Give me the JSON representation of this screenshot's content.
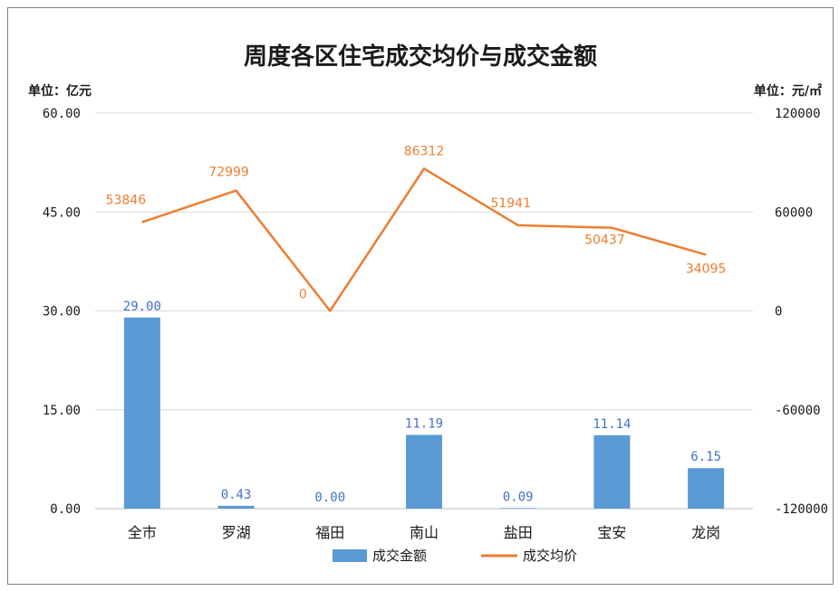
{
  "chart_data": {
    "type": "bar",
    "title": "周度各区住宅成交均价与成交金额",
    "ylabel_left": "单位：亿元",
    "ylabel_right": "单位：元/㎡",
    "categories": [
      "全市",
      "罗湖",
      "福田",
      "南山",
      "盐田",
      "宝安",
      "龙岗"
    ],
    "series": [
      {
        "name": "成交金额",
        "type": "bar",
        "axis": "left",
        "values": [
          29.0,
          0.43,
          0.0,
          11.19,
          0.09,
          11.14,
          6.15
        ],
        "labels": [
          "29.00",
          "0.43",
          "0.00",
          "11.19",
          "0.09",
          "11.14",
          "6.15"
        ]
      },
      {
        "name": "成交均价",
        "type": "line",
        "axis": "right",
        "values": [
          53846,
          72999,
          0,
          86312,
          51941,
          50437,
          34095
        ],
        "labels": [
          "53846",
          "72999",
          "0",
          "86312",
          "51941",
          "50437",
          "34095"
        ]
      }
    ],
    "ylim_left": [
      0,
      60
    ],
    "yticks_left": [
      "0.00",
      "15.00",
      "30.00",
      "45.00",
      "60.00"
    ],
    "ylim_right": [
      -120000,
      120000
    ],
    "yticks_right": [
      "-120000",
      "-60000",
      "0",
      "60000",
      "120000"
    ],
    "grid": true,
    "legend": "bottom",
    "colors": {
      "bar": "#5b9bd5",
      "bar_label": "#4472c4",
      "line": "#ed7d31",
      "line_label": "#ed7d31",
      "grid": "#d9d9d9"
    }
  }
}
